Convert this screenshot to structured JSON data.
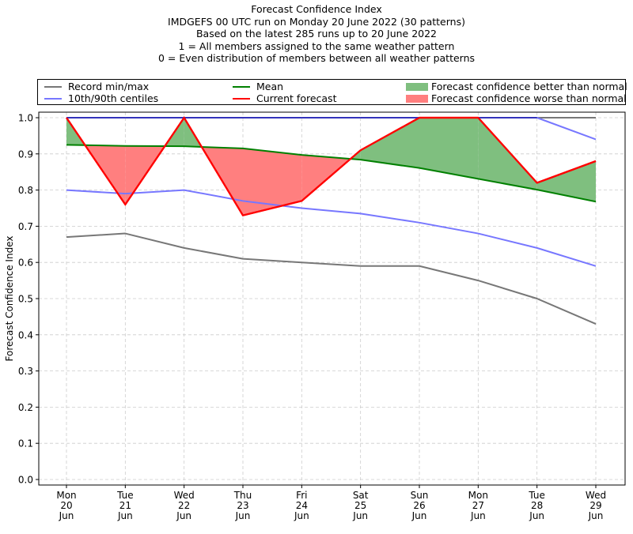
{
  "chart_data": {
    "type": "line",
    "title": "Forecast Confidence Index",
    "subtitle_lines": [
      "IMDGEFS 00 UTC run on Monday 20 June 2022 (30 patterns)",
      "Based on the latest 285 runs up to 20 June 2022",
      "1 = All members assigned to the same weather pattern",
      "0 = Even distribution of members between all weather patterns"
    ],
    "xlabel": "",
    "ylabel": "Forecast Confidence Index",
    "ylim": [
      0.0,
      1.0
    ],
    "yticks": [
      "0.0",
      "0.1",
      "0.2",
      "0.3",
      "0.4",
      "0.5",
      "0.6",
      "0.7",
      "0.8",
      "0.9",
      "1.0"
    ],
    "categories": [
      [
        "Mon",
        "20",
        "Jun"
      ],
      [
        "Tue",
        "21",
        "Jun"
      ],
      [
        "Wed",
        "22",
        "Jun"
      ],
      [
        "Thu",
        "23",
        "Jun"
      ],
      [
        "Fri",
        "24",
        "Jun"
      ],
      [
        "Sat",
        "25",
        "Jun"
      ],
      [
        "Sun",
        "26",
        "Jun"
      ],
      [
        "Mon",
        "27",
        "Jun"
      ],
      [
        "Tue",
        "28",
        "Jun"
      ],
      [
        "Wed",
        "29",
        "Jun"
      ]
    ],
    "grid": true,
    "legend_position": "top",
    "series": [
      {
        "name": "Record min",
        "legend": "Record min/max",
        "color": "#777777",
        "values": [
          0.67,
          0.68,
          0.64,
          0.61,
          0.6,
          0.59,
          0.59,
          0.55,
          0.5,
          0.43
        ]
      },
      {
        "name": "Record max",
        "legend": "Record min/max",
        "color": "#777777",
        "values": [
          1.0,
          1.0,
          1.0,
          1.0,
          1.0,
          1.0,
          1.0,
          1.0,
          1.0,
          1.0
        ]
      },
      {
        "name": "10th centile",
        "legend": "10th/90th centiles",
        "color": "#7777ff",
        "values": [
          0.8,
          0.79,
          0.8,
          0.77,
          0.75,
          0.735,
          0.71,
          0.68,
          0.64,
          0.59
        ]
      },
      {
        "name": "90th centile",
        "legend": "10th/90th centiles",
        "color": "#7777ff",
        "values": [
          1.0,
          1.0,
          1.0,
          1.0,
          1.0,
          1.0,
          1.0,
          1.0,
          1.0,
          0.94
        ]
      },
      {
        "name": "Mean",
        "legend": "Mean",
        "color": "#008000",
        "values": [
          0.925,
          0.922,
          0.921,
          0.915,
          0.897,
          0.884,
          0.861,
          0.831,
          0.801,
          0.768
        ]
      },
      {
        "name": "Current forecast",
        "legend": "Current forecast",
        "color": "#ff0000",
        "values": [
          1.0,
          0.76,
          1.0,
          0.73,
          0.77,
          0.91,
          1.0,
          1.0,
          0.82,
          0.88
        ]
      }
    ],
    "fills": {
      "better": {
        "label": "Forecast confidence better than normal",
        "color": "#7fbf7f"
      },
      "worse": {
        "label": "Forecast confidence worse than normal",
        "color": "#ff7f7f"
      }
    },
    "legend": {
      "record": "Record min/max",
      "centiles": "10th/90th centiles",
      "mean": "Mean",
      "current": "Current forecast",
      "better": "Forecast confidence better than normal",
      "worse": "Forecast confidence worse than normal"
    }
  }
}
